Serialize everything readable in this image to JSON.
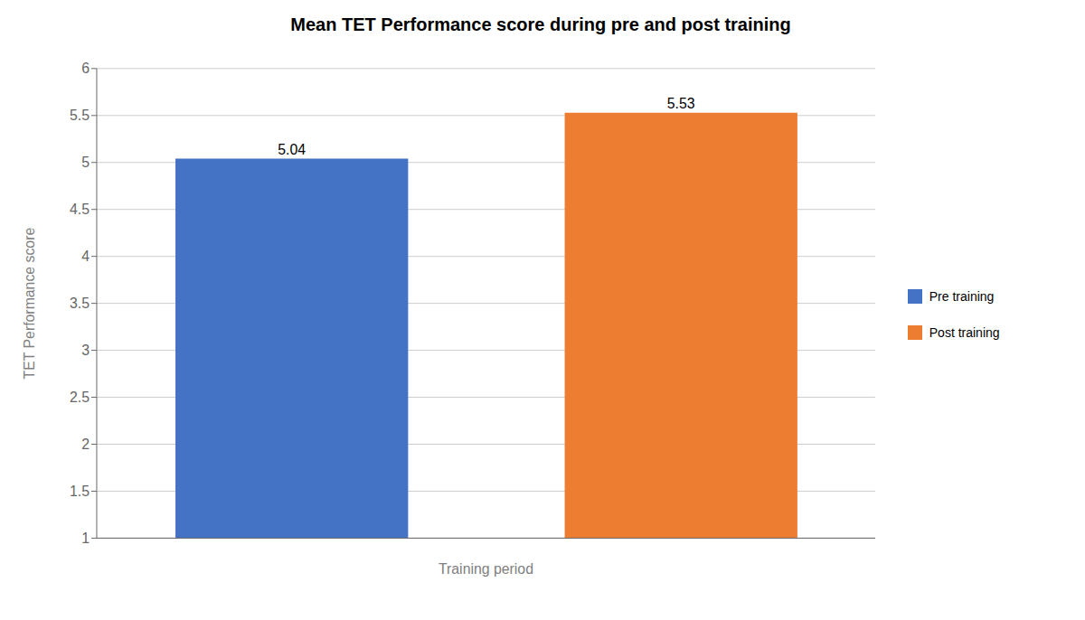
{
  "chart_data": {
    "type": "bar",
    "title": "Mean TET Performance score during pre and post training",
    "xlabel": "Training period",
    "ylabel": "TET Performance score",
    "categories": [
      "Pre training",
      "Post training"
    ],
    "values": [
      5.04,
      5.53
    ],
    "colors": [
      "#4472C4",
      "#ED7D31"
    ],
    "ylim": [
      1,
      6
    ],
    "yticks": [
      1,
      1.5,
      2,
      2.5,
      3,
      3.5,
      4,
      4.5,
      5,
      5.5,
      6
    ],
    "grid": true,
    "legend": "right",
    "data_labels": true,
    "tick_labels": "y"
  }
}
